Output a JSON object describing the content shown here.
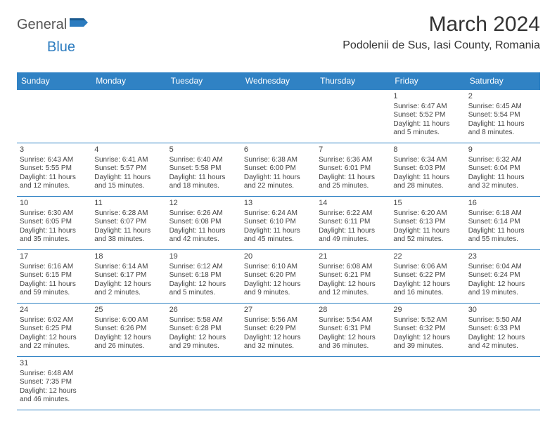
{
  "brand": {
    "part1": "General",
    "part2": "Blue"
  },
  "title": "March 2024",
  "location": "Podolenii de Sus, Iasi County, Romania",
  "colors": {
    "header_bg": "#3082c4",
    "header_fg": "#ffffff",
    "cell_border": "#3082c4",
    "text": "#444444",
    "brand_gray": "#555555",
    "brand_blue": "#2b7bbf",
    "page_bg": "#ffffff"
  },
  "weekdays": [
    "Sunday",
    "Monday",
    "Tuesday",
    "Wednesday",
    "Thursday",
    "Friday",
    "Saturday"
  ],
  "weeks": [
    [
      null,
      null,
      null,
      null,
      null,
      {
        "n": "1",
        "sr": "Sunrise: 6:47 AM",
        "ss": "Sunset: 5:52 PM",
        "dl": "Daylight: 11 hours and 5 minutes."
      },
      {
        "n": "2",
        "sr": "Sunrise: 6:45 AM",
        "ss": "Sunset: 5:54 PM",
        "dl": "Daylight: 11 hours and 8 minutes."
      }
    ],
    [
      {
        "n": "3",
        "sr": "Sunrise: 6:43 AM",
        "ss": "Sunset: 5:55 PM",
        "dl": "Daylight: 11 hours and 12 minutes."
      },
      {
        "n": "4",
        "sr": "Sunrise: 6:41 AM",
        "ss": "Sunset: 5:57 PM",
        "dl": "Daylight: 11 hours and 15 minutes."
      },
      {
        "n": "5",
        "sr": "Sunrise: 6:40 AM",
        "ss": "Sunset: 5:58 PM",
        "dl": "Daylight: 11 hours and 18 minutes."
      },
      {
        "n": "6",
        "sr": "Sunrise: 6:38 AM",
        "ss": "Sunset: 6:00 PM",
        "dl": "Daylight: 11 hours and 22 minutes."
      },
      {
        "n": "7",
        "sr": "Sunrise: 6:36 AM",
        "ss": "Sunset: 6:01 PM",
        "dl": "Daylight: 11 hours and 25 minutes."
      },
      {
        "n": "8",
        "sr": "Sunrise: 6:34 AM",
        "ss": "Sunset: 6:03 PM",
        "dl": "Daylight: 11 hours and 28 minutes."
      },
      {
        "n": "9",
        "sr": "Sunrise: 6:32 AM",
        "ss": "Sunset: 6:04 PM",
        "dl": "Daylight: 11 hours and 32 minutes."
      }
    ],
    [
      {
        "n": "10",
        "sr": "Sunrise: 6:30 AM",
        "ss": "Sunset: 6:05 PM",
        "dl": "Daylight: 11 hours and 35 minutes."
      },
      {
        "n": "11",
        "sr": "Sunrise: 6:28 AM",
        "ss": "Sunset: 6:07 PM",
        "dl": "Daylight: 11 hours and 38 minutes."
      },
      {
        "n": "12",
        "sr": "Sunrise: 6:26 AM",
        "ss": "Sunset: 6:08 PM",
        "dl": "Daylight: 11 hours and 42 minutes."
      },
      {
        "n": "13",
        "sr": "Sunrise: 6:24 AM",
        "ss": "Sunset: 6:10 PM",
        "dl": "Daylight: 11 hours and 45 minutes."
      },
      {
        "n": "14",
        "sr": "Sunrise: 6:22 AM",
        "ss": "Sunset: 6:11 PM",
        "dl": "Daylight: 11 hours and 49 minutes."
      },
      {
        "n": "15",
        "sr": "Sunrise: 6:20 AM",
        "ss": "Sunset: 6:13 PM",
        "dl": "Daylight: 11 hours and 52 minutes."
      },
      {
        "n": "16",
        "sr": "Sunrise: 6:18 AM",
        "ss": "Sunset: 6:14 PM",
        "dl": "Daylight: 11 hours and 55 minutes."
      }
    ],
    [
      {
        "n": "17",
        "sr": "Sunrise: 6:16 AM",
        "ss": "Sunset: 6:15 PM",
        "dl": "Daylight: 11 hours and 59 minutes."
      },
      {
        "n": "18",
        "sr": "Sunrise: 6:14 AM",
        "ss": "Sunset: 6:17 PM",
        "dl": "Daylight: 12 hours and 2 minutes."
      },
      {
        "n": "19",
        "sr": "Sunrise: 6:12 AM",
        "ss": "Sunset: 6:18 PM",
        "dl": "Daylight: 12 hours and 5 minutes."
      },
      {
        "n": "20",
        "sr": "Sunrise: 6:10 AM",
        "ss": "Sunset: 6:20 PM",
        "dl": "Daylight: 12 hours and 9 minutes."
      },
      {
        "n": "21",
        "sr": "Sunrise: 6:08 AM",
        "ss": "Sunset: 6:21 PM",
        "dl": "Daylight: 12 hours and 12 minutes."
      },
      {
        "n": "22",
        "sr": "Sunrise: 6:06 AM",
        "ss": "Sunset: 6:22 PM",
        "dl": "Daylight: 12 hours and 16 minutes."
      },
      {
        "n": "23",
        "sr": "Sunrise: 6:04 AM",
        "ss": "Sunset: 6:24 PM",
        "dl": "Daylight: 12 hours and 19 minutes."
      }
    ],
    [
      {
        "n": "24",
        "sr": "Sunrise: 6:02 AM",
        "ss": "Sunset: 6:25 PM",
        "dl": "Daylight: 12 hours and 22 minutes."
      },
      {
        "n": "25",
        "sr": "Sunrise: 6:00 AM",
        "ss": "Sunset: 6:26 PM",
        "dl": "Daylight: 12 hours and 26 minutes."
      },
      {
        "n": "26",
        "sr": "Sunrise: 5:58 AM",
        "ss": "Sunset: 6:28 PM",
        "dl": "Daylight: 12 hours and 29 minutes."
      },
      {
        "n": "27",
        "sr": "Sunrise: 5:56 AM",
        "ss": "Sunset: 6:29 PM",
        "dl": "Daylight: 12 hours and 32 minutes."
      },
      {
        "n": "28",
        "sr": "Sunrise: 5:54 AM",
        "ss": "Sunset: 6:31 PM",
        "dl": "Daylight: 12 hours and 36 minutes."
      },
      {
        "n": "29",
        "sr": "Sunrise: 5:52 AM",
        "ss": "Sunset: 6:32 PM",
        "dl": "Daylight: 12 hours and 39 minutes."
      },
      {
        "n": "30",
        "sr": "Sunrise: 5:50 AM",
        "ss": "Sunset: 6:33 PM",
        "dl": "Daylight: 12 hours and 42 minutes."
      }
    ],
    [
      {
        "n": "31",
        "sr": "Sunrise: 6:48 AM",
        "ss": "Sunset: 7:35 PM",
        "dl": "Daylight: 12 hours and 46 minutes."
      },
      null,
      null,
      null,
      null,
      null,
      null
    ]
  ]
}
